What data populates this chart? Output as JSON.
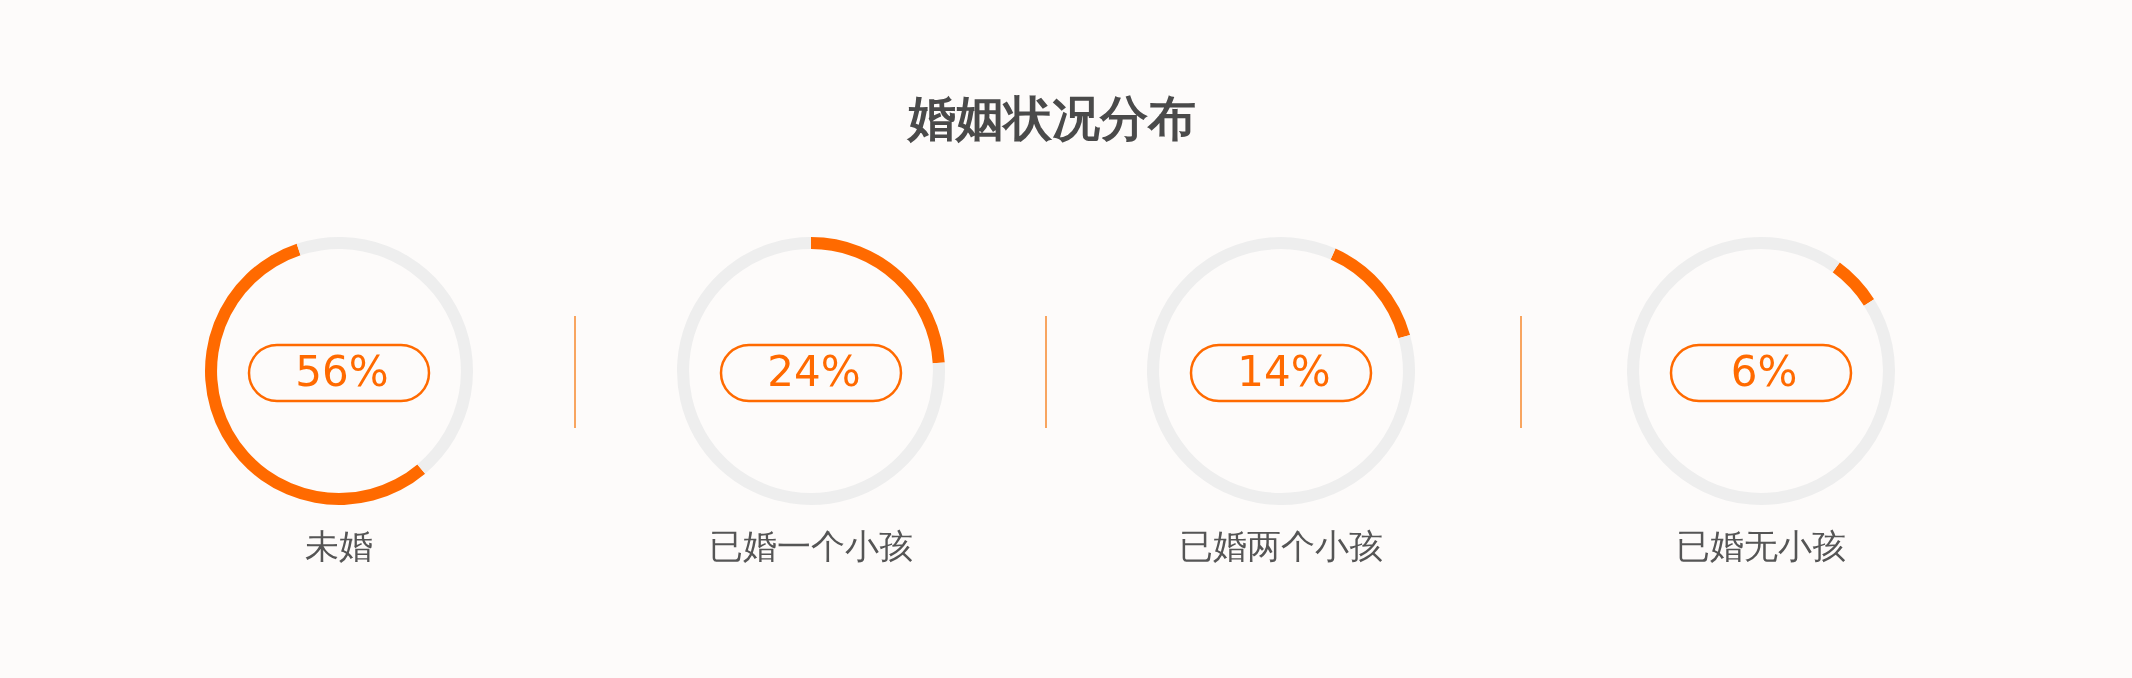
{
  "chart_data": [
    {
      "type": "other",
      "title": "婚姻状况分布"
    },
    {
      "type": "donut",
      "title": "未婚",
      "categories": [
        null,
        null
      ],
      "values": [
        56,
        44
      ],
      "colors": [
        "#ff6a00",
        "#eeeeee"
      ],
      "annotations": [
        "56%"
      ]
    },
    {
      "type": "donut",
      "title": "已婚一个小孩",
      "categories": [
        null,
        null
      ],
      "values": [
        24,
        76
      ],
      "colors": [
        "#ff6a00",
        "#eeeeee"
      ],
      "annotations": [
        "24%"
      ]
    },
    {
      "type": "donut",
      "title": "已婚两个小孩",
      "categories": [
        null,
        null
      ],
      "values": [
        14,
        86
      ],
      "colors": [
        "#ff6a00",
        "#eeeeee"
      ],
      "annotations": [
        "14%"
      ]
    },
    {
      "type": "donut",
      "title": "已婚无小孩",
      "categories": [
        null,
        null
      ],
      "values": [
        6,
        94
      ],
      "colors": [
        "#ff6a00",
        "#eeeeee"
      ],
      "annotations": [
        "6%"
      ]
    }
  ]
}
